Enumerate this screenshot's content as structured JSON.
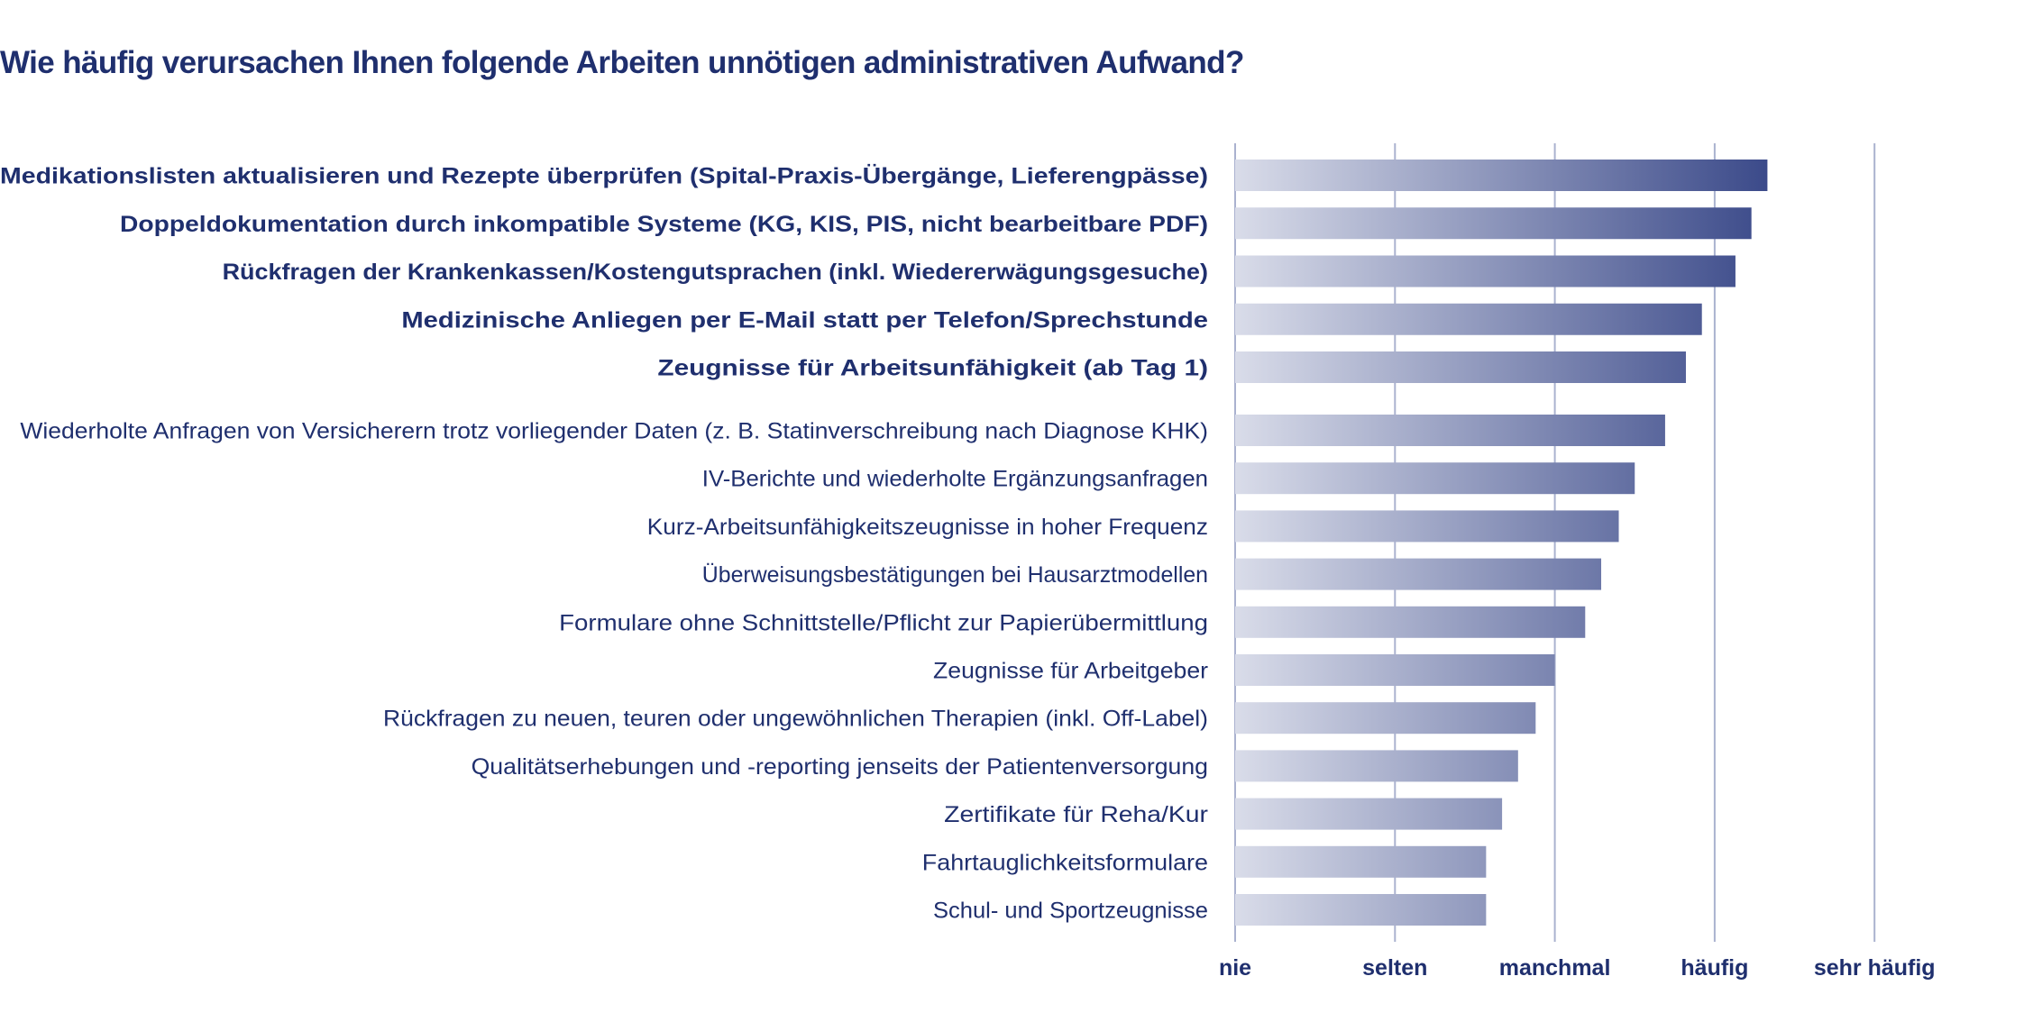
{
  "chart_data": {
    "type": "bar",
    "orientation": "horizontal",
    "title": "Wie häufig verursachen Ihnen folgende Arbeiten unnötigen administrativen Aufwand?",
    "xlabel": "",
    "ylabel": "",
    "x_ticks": [
      "nie",
      "selten",
      "manchmal",
      "häufig",
      "sehr häufig"
    ],
    "x_tick_values": [
      0,
      1,
      2,
      3,
      4
    ],
    "xlim": [
      0,
      4
    ],
    "grid": "vertical",
    "legend": "none",
    "colors": {
      "bar_start": "#d9dce9",
      "bar_end": "#3a4989",
      "text": "#1f2f6e",
      "grid": "#aab2cf"
    },
    "categories": [
      "Medikationslisten aktualisieren und Rezepte überprüfen (Spital-Praxis-Übergänge, Lieferengpässe)",
      "Doppeldokumentation durch inkompatible Systeme (KG, KIS, PIS, nicht bearbeitbare PDF)",
      "Rückfragen der Krankenkassen/Kostengutsprachen (inkl. Wiedererwägungsgesuche)",
      "Medizinische Anliegen per E-Mail statt per Telefon/Sprechstunde",
      "Zeugnisse für Arbeitsunfähigkeit (ab Tag 1)",
      "Wiederholte Anfragen von Versicherern trotz vorliegender Daten (z. B. Statinverschreibung nach Diagnose KHK)",
      "IV-Berichte und wiederholte Ergänzungsanfragen",
      "Kurz-Arbeitsunfähigkeitszeugnisse in hoher Frequenz",
      "Überweisungsbestätigungen bei Hausarztmodellen",
      "Formulare ohne Schnittstelle/Pflicht zur Papierübermittlung",
      "Zeugnisse für Arbeitgeber",
      "Rückfragen zu neuen, teuren oder ungewöhnlichen Therapien (inkl. Off-Label)",
      "Qualitätserhebungen und -reporting jenseits der Patientenversorgung",
      "Zertifikate für Reha/Kur",
      "Fahrtauglichkeitsformulare",
      "Schul- und Sportzeugnisse"
    ],
    "highlighted": [
      true,
      true,
      true,
      true,
      true,
      false,
      false,
      false,
      false,
      false,
      false,
      false,
      false,
      false,
      false,
      false
    ],
    "values": [
      3.33,
      3.23,
      3.13,
      2.92,
      2.82,
      2.69,
      2.5,
      2.4,
      2.29,
      2.19,
      2.0,
      1.88,
      1.77,
      1.67,
      1.57,
      1.57
    ]
  }
}
